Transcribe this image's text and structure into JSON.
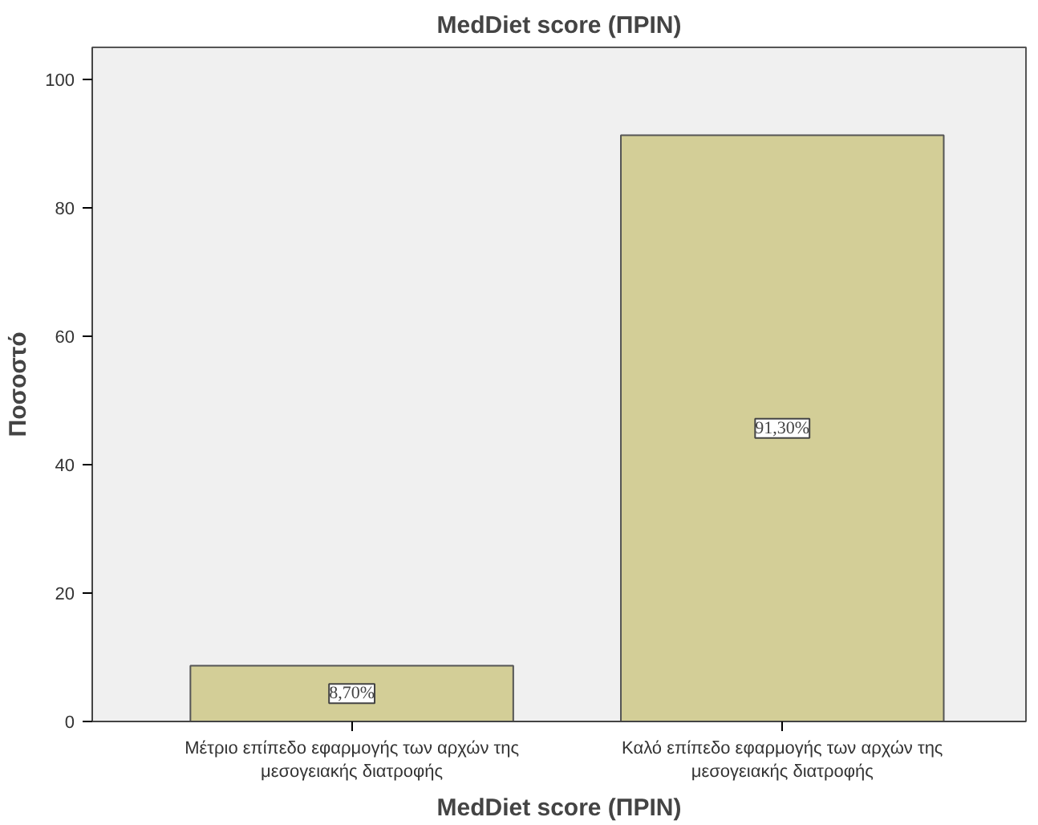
{
  "chart_data": {
    "type": "bar",
    "title": "MedDiet score (ΠΡΙΝ)",
    "xlabel": "MedDiet score (ΠΡΙΝ)",
    "ylabel": "Ποσοστό",
    "categories": [
      "Μέτριο επίπεδο εφαρμογής των αρχών της\nμεσογειακής διατροφής",
      "Καλό επίπεδο εφαρμογής των αρχών της\nμεσογειακής διατροφής"
    ],
    "values": [
      8.7,
      91.3
    ],
    "value_labels": [
      "8,70%",
      "91,30%"
    ],
    "color": "#d3ce97",
    "ylim": [
      0,
      105
    ],
    "yticks": [
      0,
      20,
      40,
      60,
      80,
      100
    ],
    "grid": false
  }
}
